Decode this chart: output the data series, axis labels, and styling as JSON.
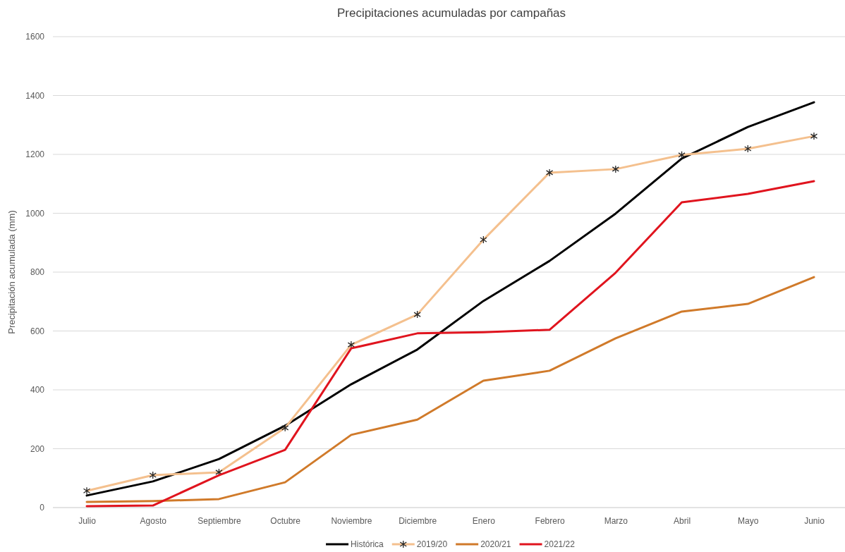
{
  "chart_data": {
    "type": "line",
    "title": "Precipitaciones acumuladas por campañas",
    "ylabel": "Precipitación acumulada (mm)",
    "categories": [
      "Julio",
      "Agosto",
      "Septiembre",
      "Octubre",
      "Noviembre",
      "Diciembre",
      "Enero",
      "Febrero",
      "Marzo",
      "Abril",
      "Mayo",
      "Junio"
    ],
    "series": [
      {
        "name": "Histórica",
        "color": "#000000",
        "marker": "none",
        "values": [
          41,
          89,
          165,
          278,
          419,
          537,
          702,
          838,
          999,
          1186,
          1293,
          1377
        ]
      },
      {
        "name": "2019/20",
        "color": "#f4c08e",
        "marker": "cross",
        "values": [
          57,
          110,
          120,
          271,
          553,
          656,
          910,
          1138,
          1150,
          1198,
          1219,
          1262
        ]
      },
      {
        "name": "2020/21",
        "color": "#d07a2a",
        "marker": "none",
        "values": [
          19,
          22,
          29,
          86,
          247,
          299,
          431,
          465,
          575,
          666,
          692,
          783
        ]
      },
      {
        "name": "2021/22",
        "color": "#e0141e",
        "marker": "none",
        "values": [
          5,
          7,
          110,
          196,
          541,
          592,
          596,
          604,
          798,
          1037,
          1066,
          1109
        ]
      }
    ],
    "ylim": [
      0,
      1600
    ],
    "yticks": [
      0,
      200,
      400,
      600,
      800,
      1000,
      1200,
      1400,
      1600
    ],
    "grid": "y",
    "legend": "bottom",
    "line_style": "solid"
  }
}
